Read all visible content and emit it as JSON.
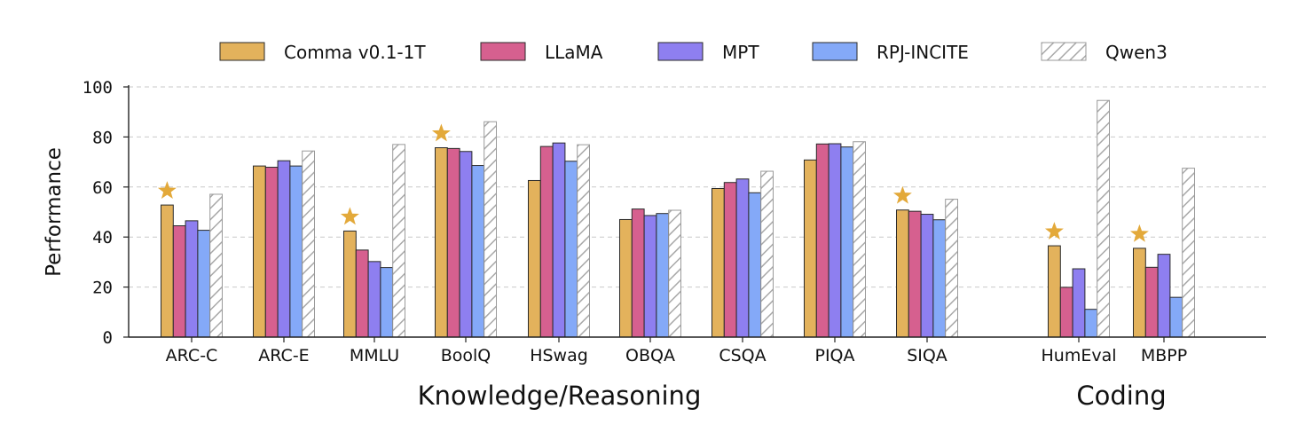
{
  "chart_data": {
    "type": "bar",
    "ylabel": "Performance",
    "ylim": [
      0,
      100
    ],
    "yticks": [
      "0",
      "20",
      "40",
      "60",
      "80",
      "100"
    ],
    "grid": "horizontal dashed",
    "legend_position": "top",
    "categories": [
      "ARC-C",
      "ARC-E",
      "MMLU",
      "BoolQ",
      "HSwag",
      "OBQA",
      "CSQA",
      "PIQA",
      "SIQA",
      "HumEval",
      "MBPP"
    ],
    "groups": [
      {
        "label": "Knowledge/Reasoning",
        "categories": [
          "ARC-C",
          "ARC-E",
          "MMLU",
          "BoolQ",
          "HSwag",
          "OBQA",
          "CSQA",
          "PIQA",
          "SIQA"
        ]
      },
      {
        "label": "Coding",
        "categories": [
          "HumEval",
          "MBPP"
        ]
      }
    ],
    "series": [
      {
        "name": "Comma v0.1-1T",
        "color": "#e3b25c",
        "hatched": false,
        "values": [
          52.8,
          68.4,
          42.4,
          75.7,
          62.6,
          47.0,
          59.4,
          70.8,
          50.8,
          36.5,
          35.5
        ]
      },
      {
        "name": "LLaMA",
        "color": "#d6608f",
        "hatched": false,
        "values": [
          44.5,
          67.9,
          34.8,
          75.4,
          76.2,
          51.2,
          61.8,
          77.2,
          50.3,
          19.9,
          27.9
        ]
      },
      {
        "name": "MPT",
        "color": "#8e7ff0",
        "hatched": false,
        "values": [
          46.5,
          70.5,
          30.2,
          74.2,
          77.6,
          48.6,
          63.2,
          77.3,
          49.1,
          27.3,
          33.1
        ]
      },
      {
        "name": "RPJ-INCITE",
        "color": "#84a9f8",
        "hatched": false,
        "values": [
          42.7,
          68.4,
          27.8,
          68.6,
          70.3,
          49.4,
          57.7,
          76.0,
          46.9,
          11.1,
          15.9
        ]
      },
      {
        "name": "Qwen3",
        "color": "#ffffff",
        "hatched": true,
        "values": [
          57.1,
          74.4,
          77.0,
          86.1,
          76.9,
          50.7,
          66.3,
          78.1,
          55.1,
          94.6,
          67.5
        ]
      }
    ],
    "stars": [
      "ARC-C",
      "MMLU",
      "BoolQ",
      "SIQA",
      "HumEval",
      "MBPP"
    ],
    "star_color": "#e3a93a"
  }
}
